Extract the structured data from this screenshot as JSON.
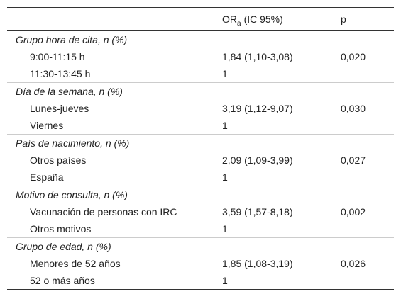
{
  "header": {
    "or": {
      "base": "OR",
      "sub": "a",
      "rest": "(IC 95%)"
    },
    "p": "p"
  },
  "groups": [
    {
      "title": "Grupo hora de cita, n (%)",
      "rows": [
        {
          "label": "9:00-11:15 h",
          "or": "1,84 (1,10-3,08)",
          "p": "0,020"
        },
        {
          "label": "11:30-13:45 h",
          "or": "1"
        }
      ]
    },
    {
      "title": "Día de la semana, n (%)",
      "rows": [
        {
          "label": "Lunes-jueves",
          "or": "3,19 (1,12-9,07)",
          "p": "0,030"
        },
        {
          "label": "Viernes",
          "or": "1"
        }
      ]
    },
    {
      "title": "País de nacimiento, n (%)",
      "rows": [
        {
          "label": "Otros países",
          "or": "2,09 (1,09-3,99)",
          "p": "0,027"
        },
        {
          "label": "España",
          "or": "1"
        }
      ]
    },
    {
      "title": "Motivo de consulta, n (%)",
      "rows": [
        {
          "label": "Vacunación de personas con IRC",
          "or": "3,59 (1,57-8,18)",
          "p": "0,002"
        },
        {
          "label": "Otros motivos",
          "or": "1"
        }
      ]
    },
    {
      "title": "Grupo de edad, n (%)",
      "rows": [
        {
          "label": "Menores de 52 años",
          "or": "1,85 (1,08-3,19)",
          "p": "0,026"
        },
        {
          "label": "52 o más años",
          "or": "1"
        }
      ]
    }
  ]
}
